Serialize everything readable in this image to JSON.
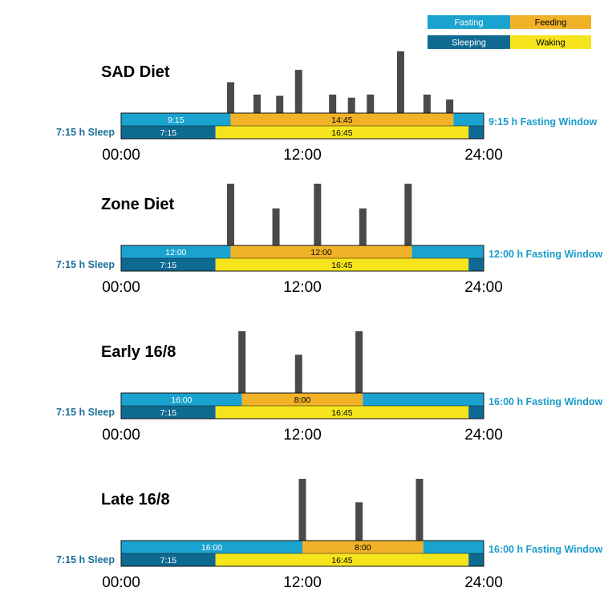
{
  "colors": {
    "fasting": "#1aa3cf",
    "feeding": "#f1b227",
    "sleeping": "#0f6a92",
    "waking": "#f6e51c",
    "meal": "#4a4a4a",
    "sideText": "#1a9ccb",
    "sleepText": "#1b6f98"
  },
  "legend": {
    "fasting": "Fasting",
    "feeding": "Feeding",
    "sleeping": "Sleeping",
    "waking": "Waking"
  },
  "chart_data": [
    {
      "type": "bar",
      "title": "SAD Diet",
      "x_range": [
        0,
        24
      ],
      "tick_labels": [
        "00:00",
        "12:00",
        "24:00"
      ],
      "sleep_label": "7:15 h Sleep",
      "fasting_window_label": "9:15 h Fasting Window",
      "eating_segments": [
        {
          "kind": "fasting",
          "start": 0,
          "end": 7.25,
          "label": "9:15"
        },
        {
          "kind": "feeding",
          "start": 7.25,
          "end": 22.0,
          "label": "14:45"
        },
        {
          "kind": "fasting",
          "start": 22.0,
          "end": 24,
          "label": ""
        }
      ],
      "sleep_segments": [
        {
          "kind": "sleeping",
          "start": 0,
          "end": 6.25,
          "label": "7:15"
        },
        {
          "kind": "waking",
          "start": 6.25,
          "end": 23.0,
          "label": "16:45"
        },
        {
          "kind": "sleeping",
          "start": 23.0,
          "end": 24,
          "label": ""
        }
      ],
      "meals": [
        {
          "t": 7.25,
          "size": 0.5
        },
        {
          "t": 9.0,
          "size": 0.3
        },
        {
          "t": 10.5,
          "size": 0.28
        },
        {
          "t": 11.75,
          "size": 0.7
        },
        {
          "t": 14.0,
          "size": 0.3
        },
        {
          "t": 15.25,
          "size": 0.25
        },
        {
          "t": 16.5,
          "size": 0.3
        },
        {
          "t": 18.5,
          "size": 1.0
        },
        {
          "t": 20.25,
          "size": 0.3
        },
        {
          "t": 21.75,
          "size": 0.22
        }
      ]
    },
    {
      "type": "bar",
      "title": "Zone Diet",
      "x_range": [
        0,
        24
      ],
      "tick_labels": [
        "00:00",
        "12:00",
        "24:00"
      ],
      "sleep_label": "7:15 h Sleep",
      "fasting_window_label": "12:00 h Fasting Window",
      "eating_segments": [
        {
          "kind": "fasting",
          "start": 0,
          "end": 7.25,
          "label": "12:00"
        },
        {
          "kind": "feeding",
          "start": 7.25,
          "end": 19.25,
          "label": "12:00"
        },
        {
          "kind": "fasting",
          "start": 19.25,
          "end": 24,
          "label": ""
        }
      ],
      "sleep_segments": [
        {
          "kind": "sleeping",
          "start": 0,
          "end": 6.25,
          "label": "7:15"
        },
        {
          "kind": "waking",
          "start": 6.25,
          "end": 23.0,
          "label": "16:45"
        },
        {
          "kind": "sleeping",
          "start": 23.0,
          "end": 24,
          "label": ""
        }
      ],
      "meals": [
        {
          "t": 7.25,
          "size": 1.0
        },
        {
          "t": 10.25,
          "size": 0.6
        },
        {
          "t": 13.0,
          "size": 1.0
        },
        {
          "t": 16.0,
          "size": 0.6
        },
        {
          "t": 19.0,
          "size": 1.0
        }
      ]
    },
    {
      "type": "bar",
      "title": "Early 16/8",
      "x_range": [
        0,
        24
      ],
      "tick_labels": [
        "00:00",
        "12:00",
        "24:00"
      ],
      "sleep_label": "7:15 h Sleep",
      "fasting_window_label": "16:00 h Fasting Window",
      "eating_segments": [
        {
          "kind": "fasting",
          "start": 0,
          "end": 8.0,
          "label": "16:00"
        },
        {
          "kind": "feeding",
          "start": 8.0,
          "end": 16.0,
          "label": "8:00"
        },
        {
          "kind": "fasting",
          "start": 16.0,
          "end": 24,
          "label": ""
        }
      ],
      "sleep_segments": [
        {
          "kind": "sleeping",
          "start": 0,
          "end": 6.25,
          "label": "7:15"
        },
        {
          "kind": "waking",
          "start": 6.25,
          "end": 23.0,
          "label": "16:45"
        },
        {
          "kind": "sleeping",
          "start": 23.0,
          "end": 24,
          "label": ""
        }
      ],
      "meals": [
        {
          "t": 8.0,
          "size": 1.0
        },
        {
          "t": 11.75,
          "size": 0.62
        },
        {
          "t": 15.75,
          "size": 1.0
        }
      ]
    },
    {
      "type": "bar",
      "title": "Late 16/8",
      "x_range": [
        0,
        24
      ],
      "tick_labels": [
        "00:00",
        "12:00",
        "24:00"
      ],
      "sleep_label": "7:15 h Sleep",
      "fasting_window_label": "16:00 h Fasting Window",
      "eating_segments": [
        {
          "kind": "fasting",
          "start": 0,
          "end": 12.0,
          "label": "16:00"
        },
        {
          "kind": "feeding",
          "start": 12.0,
          "end": 20.0,
          "label": "8:00"
        },
        {
          "kind": "fasting",
          "start": 20.0,
          "end": 24,
          "label": ""
        }
      ],
      "sleep_segments": [
        {
          "kind": "sleeping",
          "start": 0,
          "end": 6.25,
          "label": "7:15"
        },
        {
          "kind": "waking",
          "start": 6.25,
          "end": 23.0,
          "label": "16:45"
        },
        {
          "kind": "sleeping",
          "start": 23.0,
          "end": 24,
          "label": ""
        }
      ],
      "meals": [
        {
          "t": 12.0,
          "size": 1.0
        },
        {
          "t": 15.75,
          "size": 0.62
        },
        {
          "t": 19.75,
          "size": 1.0
        }
      ]
    }
  ]
}
